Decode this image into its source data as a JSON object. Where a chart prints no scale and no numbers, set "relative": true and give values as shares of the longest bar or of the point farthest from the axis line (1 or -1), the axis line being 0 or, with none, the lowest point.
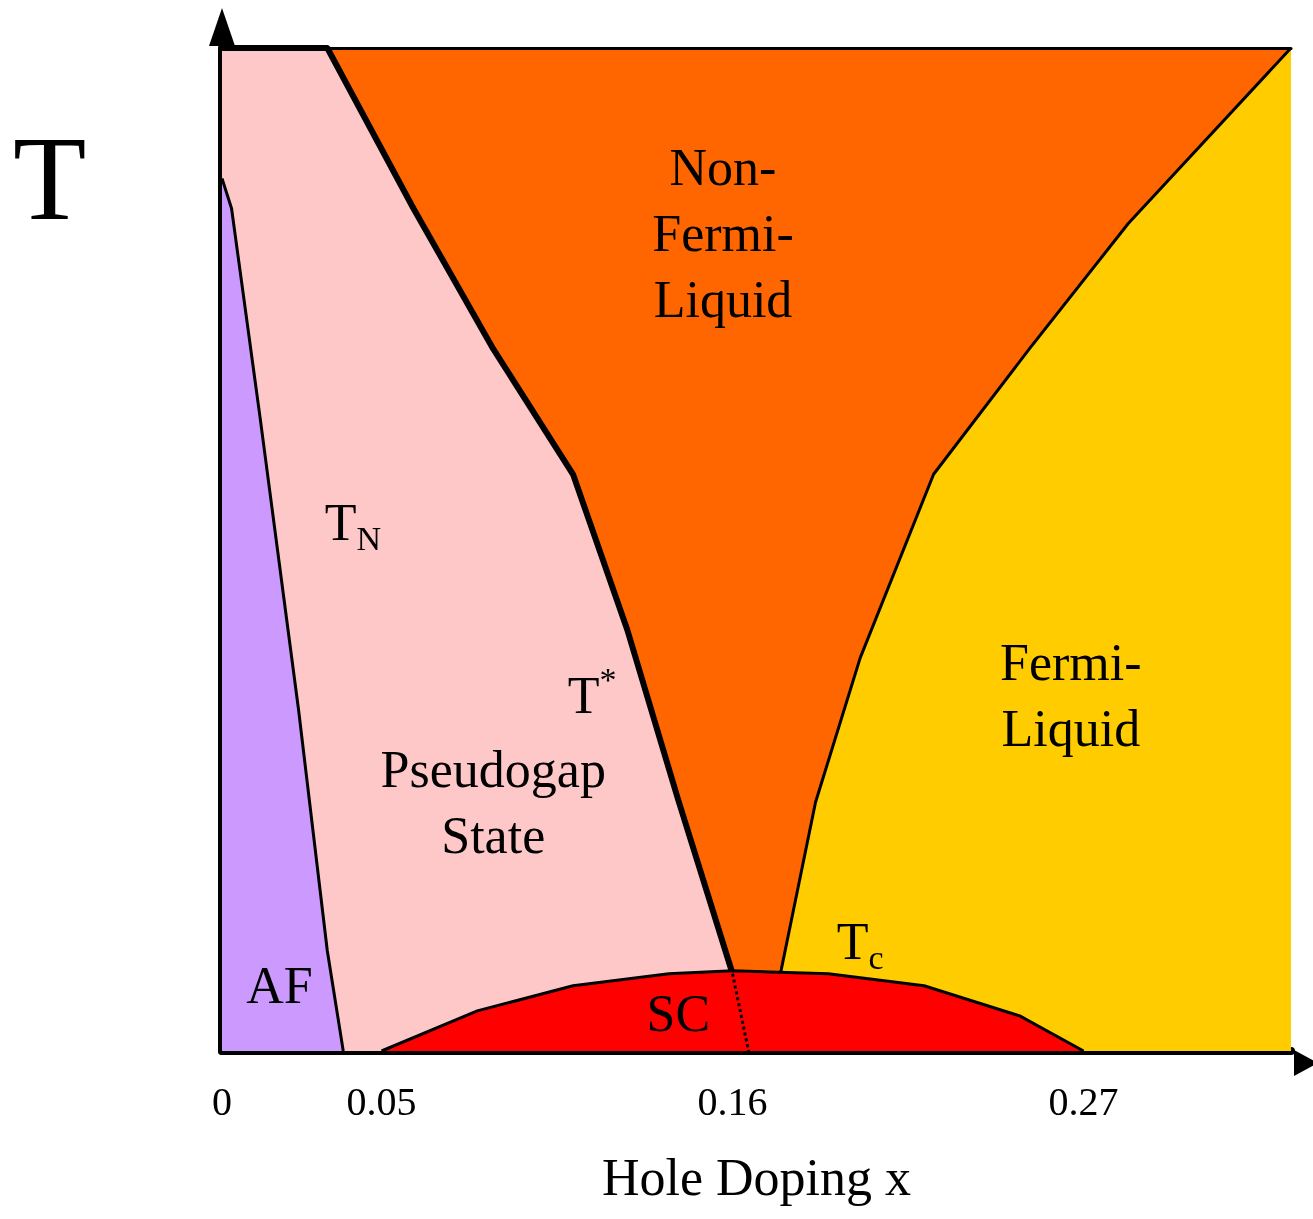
{
  "chart_data": {
    "type": "line",
    "relative": true,
    "xlabel": "Hole Doping x",
    "ylabel": "T",
    "xlim": [
      0,
      0.335
    ],
    "xticks": [
      0,
      0.05,
      0.16,
      0.27
    ],
    "series": [
      {
        "type": "area",
        "color": "#ffc8c8",
        "x": [
          0,
          0.033,
          0.06,
          0.085,
          0.11,
          0.127,
          0.143,
          0.16
        ],
        "values": [
          1,
          1,
          0.84,
          0.7,
          0.575,
          0.42,
          0.25,
          0.077
        ]
      },
      {
        "type": "area",
        "color": "#ffcc00",
        "x": [
          0.175,
          0.186,
          0.2,
          0.223,
          0.253,
          0.284,
          0.335
        ],
        "values": [
          0.077,
          0.248,
          0.392,
          0.575,
          0.7,
          0.825,
          1
        ]
      },
      {
        "type": "area",
        "color": "#cc99ff",
        "x": [
          0,
          0.003,
          0.012,
          0.024,
          0.033,
          0.038
        ],
        "values": [
          0.87,
          0.84,
          0.63,
          0.34,
          0.1,
          0
        ]
      },
      {
        "type": "area",
        "color": "#ff0000",
        "x": [
          0.05,
          0.08,
          0.11,
          0.14,
          0.16,
          0.19,
          0.22,
          0.25,
          0.27
        ],
        "values": [
          0,
          0.04,
          0.065,
          0.077,
          0.08,
          0.077,
          0.065,
          0.035,
          0
        ]
      },
      {
        "type": "line",
        "color": "#000000",
        "line_style": "dotted",
        "x": [
          0.16,
          0.165
        ],
        "values": [
          0.077,
          0
        ]
      }
    ],
    "annotations": [
      "Non-\nFermi-\nLiquid",
      "T$_{N}$",
      "T$^{*}$",
      "Pseudogap\nState",
      "Fermi-\nLiquid",
      "T$_{c}$",
      "AF",
      "SC"
    ]
  }
}
